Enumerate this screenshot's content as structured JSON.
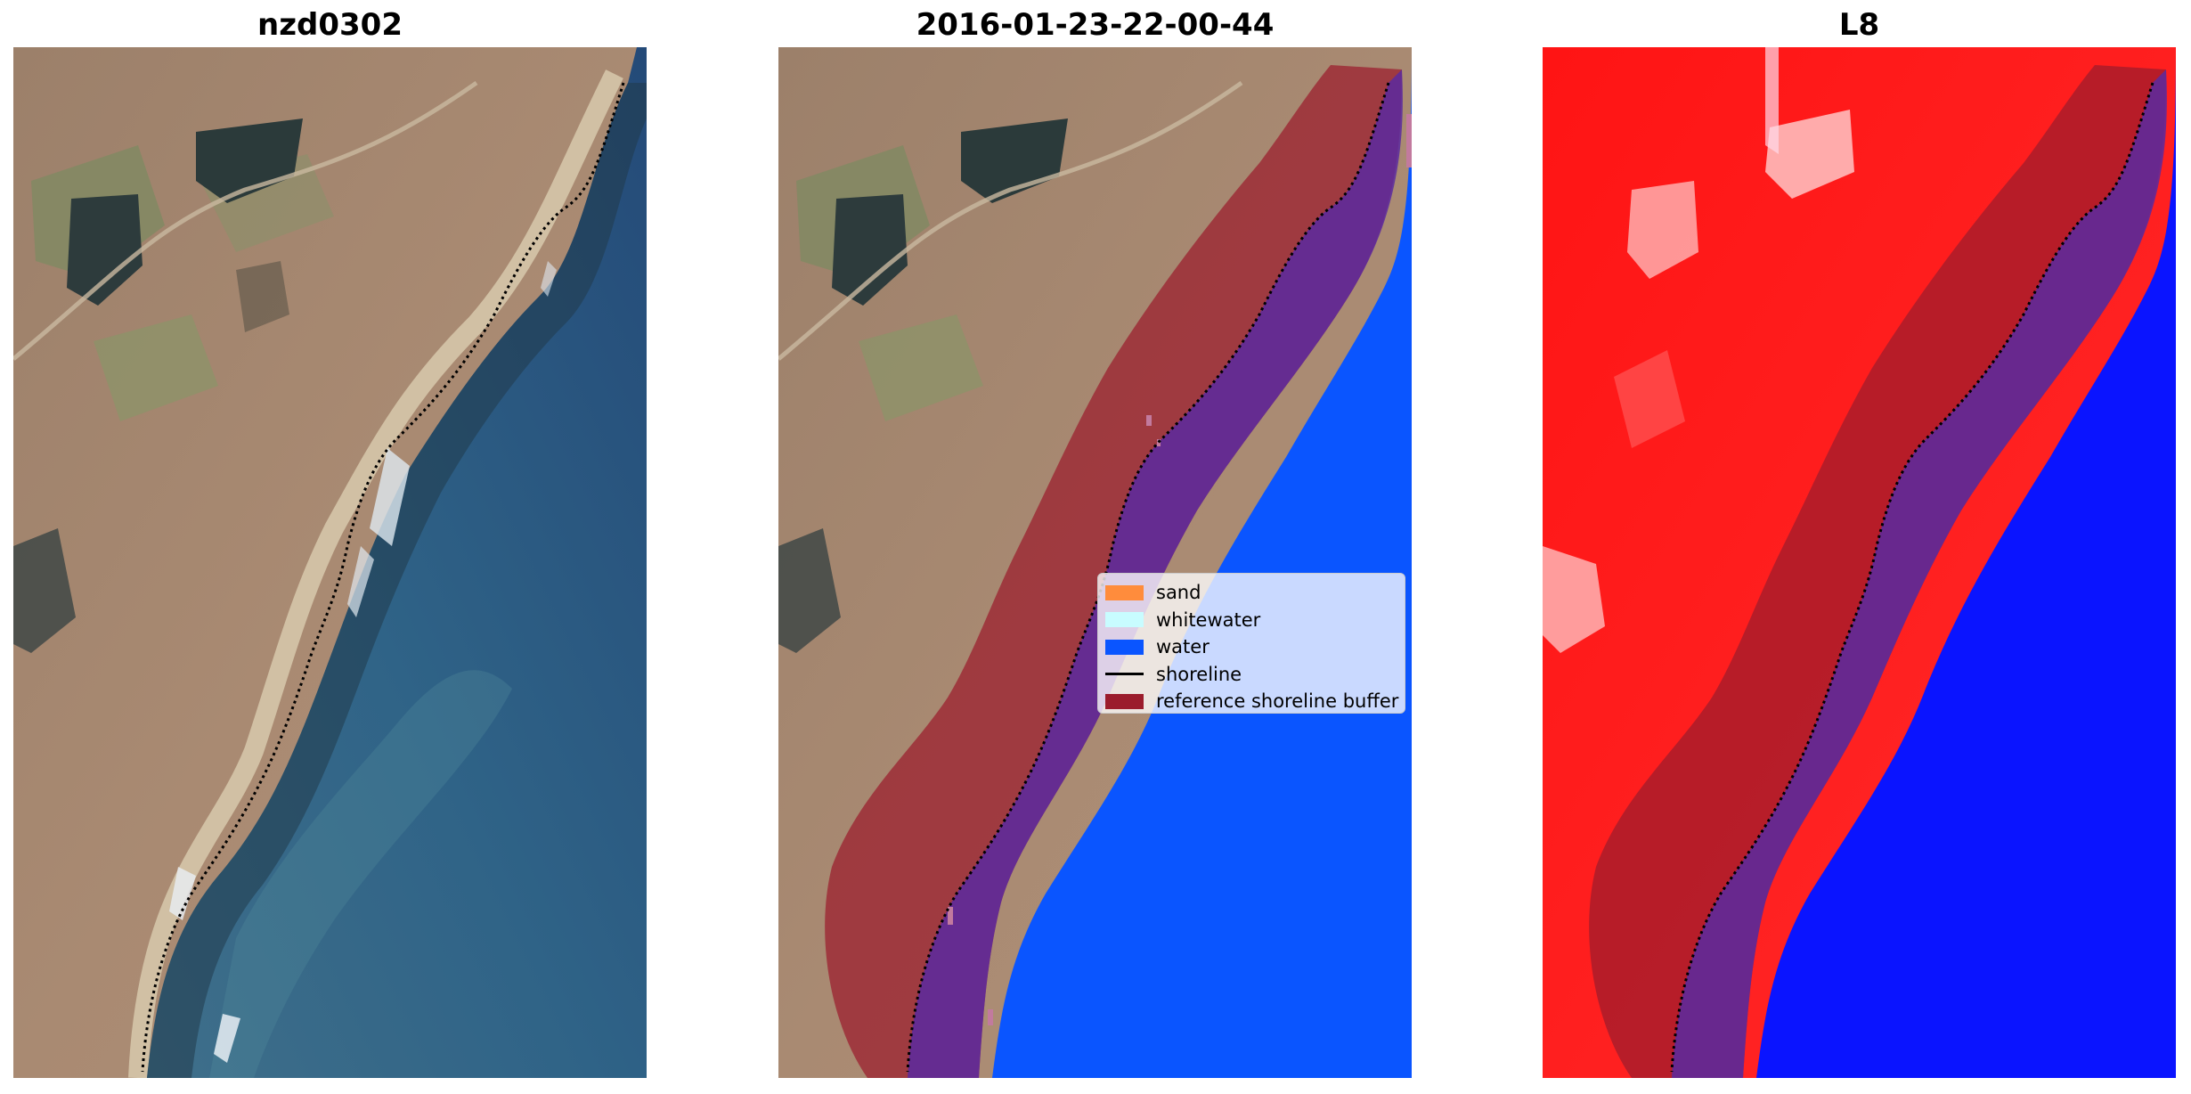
{
  "panels": [
    {
      "id": "rgb",
      "title": "nzd0302"
    },
    {
      "id": "classified",
      "title": "2016-01-23-22-00-44"
    },
    {
      "id": "index",
      "title": "L8"
    }
  ],
  "legend": {
    "items": [
      {
        "label": "sand",
        "kind": "patch",
        "color": "#ff8c3c"
      },
      {
        "label": "whitewater",
        "kind": "patch",
        "color": "#c8fcff"
      },
      {
        "label": "water",
        "kind": "patch",
        "color": "#0a55ff"
      },
      {
        "label": "shoreline",
        "kind": "line",
        "color": "#000000"
      },
      {
        "label": "reference shoreline buffer",
        "kind": "patch",
        "color": "#9b1c2c"
      }
    ]
  },
  "colors": {
    "land": "#a4826a",
    "sea": "#2c5a82",
    "water_class": "#0a55ff",
    "buffer": "#9b1c2c",
    "index_positive": "#ff1a1a",
    "index_negative": "#0a14ff",
    "shoreline": "#000000"
  }
}
